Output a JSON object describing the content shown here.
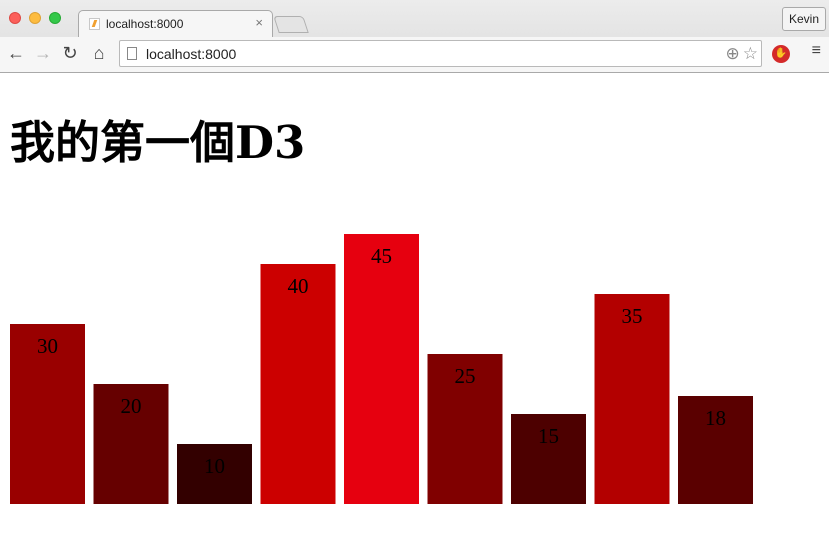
{
  "browser": {
    "tab_title": "localhost:8000",
    "tab_close": "×",
    "profile_name": "Kevin",
    "url": "localhost:8000",
    "icons": {
      "back": "back-arrow-icon",
      "forward": "forward-arrow-icon",
      "reload": "reload-icon",
      "home": "home-icon",
      "zoom": "zoom-icon",
      "bookmark": "star-icon",
      "extension": "adblock-icon",
      "menu": "hamburger-menu-icon"
    }
  },
  "page": {
    "title": "我的第一個D3"
  },
  "chart_data": {
    "type": "bar",
    "values": [
      30,
      20,
      10,
      40,
      45,
      25,
      15,
      35,
      18
    ],
    "colors": [
      "#990000",
      "#660000",
      "#330000",
      "#cc0000",
      "#e6000f",
      "#800000",
      "#4d0000",
      "#b30000",
      "#5a0000"
    ],
    "ylim": [
      0,
      45
    ]
  }
}
